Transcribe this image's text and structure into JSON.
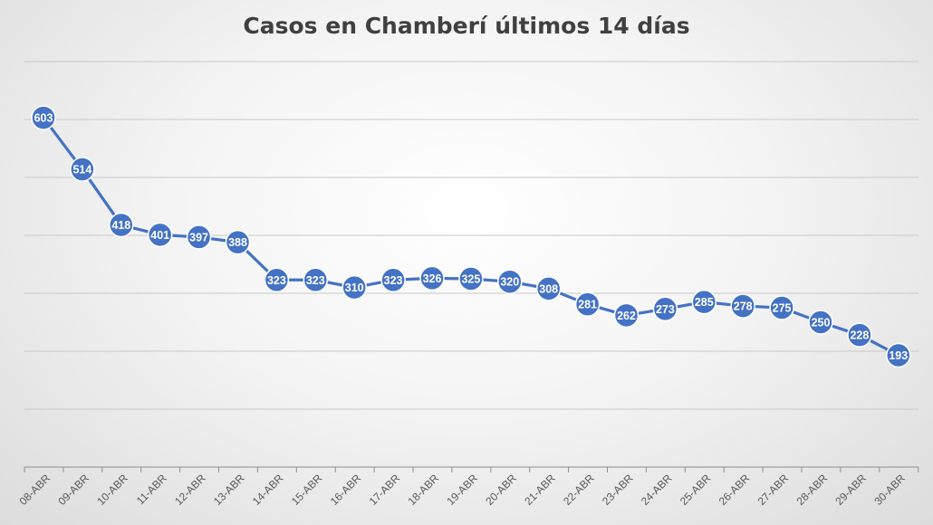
{
  "chart_data": {
    "type": "line",
    "title": "Casos en Chamberí últimos 14 días",
    "xlabel": "",
    "ylabel": "",
    "categories": [
      "08-ABR",
      "09-ABR",
      "10-ABR",
      "11-ABR",
      "12-ABR",
      "13-ABR",
      "14-ABR",
      "15-ABR",
      "16-ABR",
      "17-ABR",
      "18-ABR",
      "19-ABR",
      "20-ABR",
      "21-ABR",
      "22-ABR",
      "23-ABR",
      "24-ABR",
      "25-ABR",
      "26-ABR",
      "27-ABR",
      "28-ABR",
      "29-ABR",
      "30-ABR"
    ],
    "series": [
      {
        "values": [
          603,
          514,
          418,
          401,
          397,
          388,
          323,
          323,
          310,
          323,
          326,
          325,
          320,
          308,
          281,
          262,
          273,
          285,
          278,
          275,
          250,
          228,
          193
        ],
        "color": "#4472c4"
      }
    ],
    "ylim": [
      0,
      700
    ],
    "y_tick_labels_shown": false,
    "grid": true,
    "data_labels": true,
    "legend": "none"
  }
}
